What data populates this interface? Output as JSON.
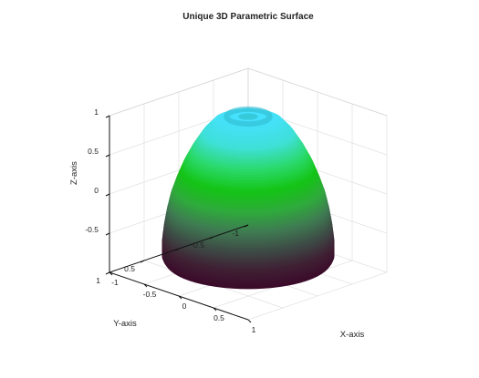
{
  "chart_data": {
    "type": "surface",
    "title": "Unique 3D Parametric Surface",
    "xlabel": "X-axis",
    "ylabel": "Y-axis",
    "zlabel": "Z-axis",
    "xlim": [
      -1,
      1
    ],
    "ylim": [
      -1,
      1
    ],
    "zlim": [
      -1,
      1
    ],
    "x_ticks": [
      "-1",
      "-0.5",
      "0",
      "0.5",
      "1"
    ],
    "y_ticks": [
      "-1",
      "-0.5",
      "0",
      "0.5",
      "1"
    ],
    "z_ticks": [
      "1",
      "0.5",
      "0",
      "-0.5"
    ],
    "grid": true,
    "surface_profile": {
      "z": [
        -0.85,
        -0.8,
        -0.6,
        -0.4,
        -0.2,
        0,
        0.2,
        0.4,
        0.6,
        0.8,
        0.95,
        1.0,
        1.0
      ],
      "radius": [
        0.85,
        0.88,
        0.88,
        0.86,
        0.83,
        0.79,
        0.73,
        0.66,
        0.57,
        0.46,
        0.34,
        0.22,
        0.12
      ]
    },
    "colormap": [
      "#3b0a2a",
      "#3f1f33",
      "#3d4a45",
      "#3f7a52",
      "#2faa3c",
      "#13c414",
      "#2ad96a",
      "#3ee0d8",
      "#45e1fd"
    ]
  }
}
